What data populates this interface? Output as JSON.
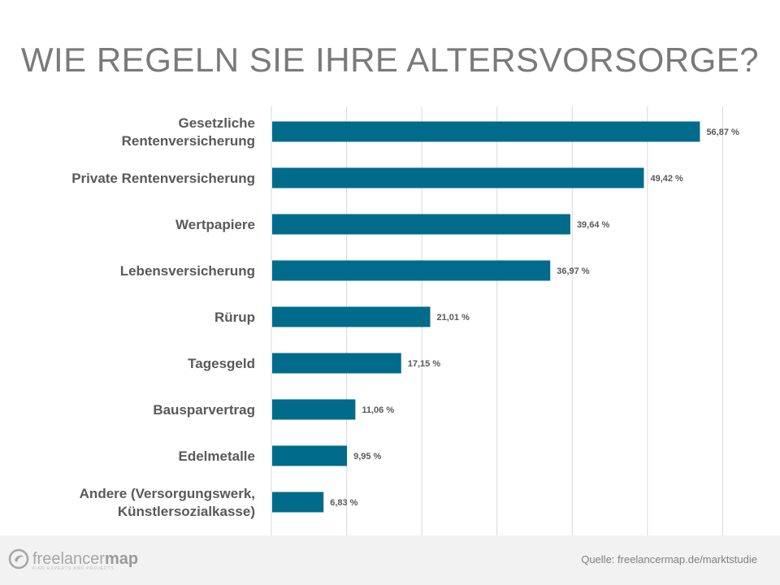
{
  "title": "WIE REGELN SIE IHRE ALTERSVORSORGE?",
  "chart_data": {
    "type": "bar",
    "orientation": "horizontal",
    "title": "WIE REGELN SIE IHRE ALTERSVORSORGE?",
    "categories": [
      [
        "Gesetzliche",
        "Rentenversicherung"
      ],
      [
        "Private Rentenversicherung"
      ],
      [
        "Wertpapiere"
      ],
      [
        "Lebensversicherung"
      ],
      [
        "Rürup"
      ],
      [
        "Tagesgeld"
      ],
      [
        "Bausparvertrag"
      ],
      [
        "Edelmetalle"
      ],
      [
        "Andere (Versorgungswerk,",
        "Künstlersozialkasse)"
      ]
    ],
    "values": [
      56.87,
      49.42,
      39.64,
      36.97,
      21.01,
      17.15,
      11.06,
      9.95,
      6.83
    ],
    "value_labels": [
      "56,87 %",
      "49,42 %",
      "39,64 %",
      "36,97 %",
      "21,01 %",
      "17,15 %",
      "11,06 %",
      "9,95 %",
      "6,83 %"
    ],
    "xlim": [
      0,
      60
    ],
    "grid": true,
    "bar_color": "#006b8a",
    "grid_color": "#d9d9d9"
  },
  "footer": {
    "logo_text_light": "freelancer",
    "logo_text_bold": "map",
    "logo_tagline": "FIND EXPERTS AND PROJECTS",
    "source": "Quelle: freelancermap.de/marktstudie"
  }
}
